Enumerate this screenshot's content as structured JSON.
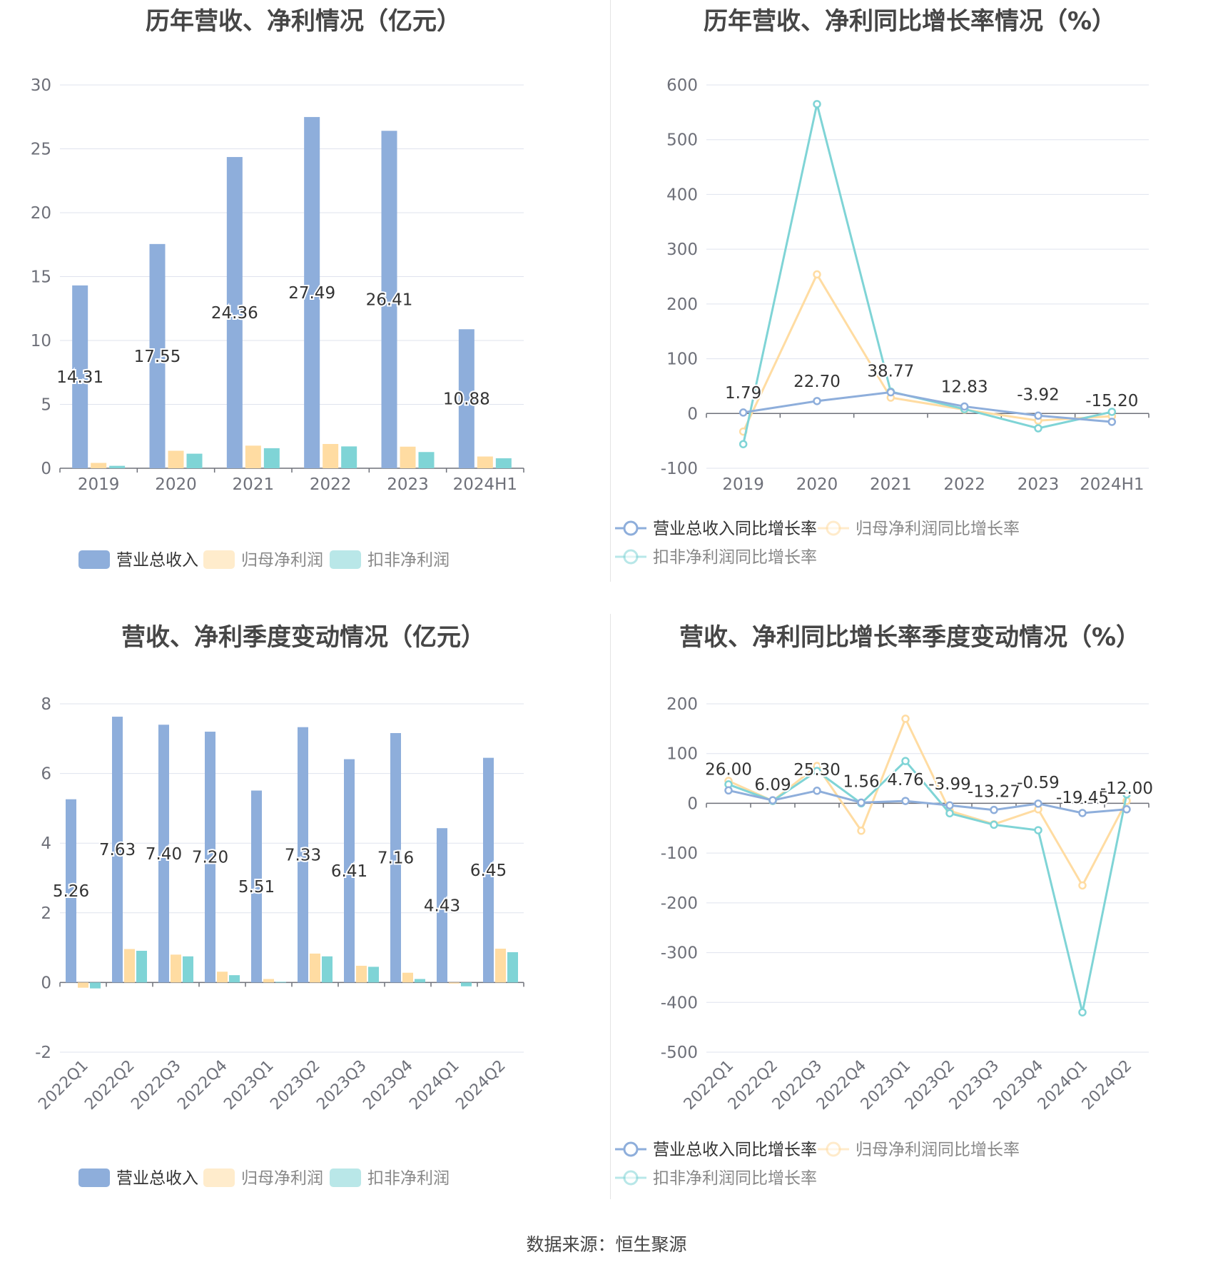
{
  "colors": {
    "revenue": "#8eaedb",
    "net_profit": "#ffdca2",
    "deducted_profit": "#7fd4d6",
    "axis": "#6e7079",
    "grid": "#dfe3ee",
    "title": "#464646"
  },
  "chart_data": [
    {
      "id": "annual-values",
      "type": "bar",
      "title": "历年营收、净利情况（亿元）",
      "categories": [
        "2019",
        "2020",
        "2021",
        "2022",
        "2023",
        "2024H1"
      ],
      "series": [
        {
          "name": "营业总收入",
          "values": [
            14.31,
            17.55,
            24.36,
            27.49,
            26.41,
            10.88
          ],
          "labels": [
            "14.31",
            "17.55",
            "24.36",
            "27.49",
            "26.41",
            "10.88"
          ]
        },
        {
          "name": "归母净利润",
          "values": [
            0.42,
            1.37,
            1.77,
            1.9,
            1.69,
            0.92
          ]
        },
        {
          "name": "扣非净利润",
          "values": [
            0.19,
            1.14,
            1.57,
            1.71,
            1.27,
            0.78
          ]
        }
      ],
      "yticks": [
        "30",
        "25",
        "20",
        "15",
        "10",
        "5",
        "0"
      ],
      "ylim": [
        0,
        30
      ]
    },
    {
      "id": "annual-growth",
      "type": "line",
      "title": "历年营收、净利同比增长率情况（%）",
      "categories": [
        "2019",
        "2020",
        "2021",
        "2022",
        "2023",
        "2024H1"
      ],
      "series": [
        {
          "name": "营业总收入同比增长率",
          "values": [
            1.79,
            22.7,
            38.77,
            12.83,
            -3.92,
            -15.2
          ],
          "labels": [
            "1.79",
            "22.70",
            "38.77",
            "12.83",
            "-3.92",
            "-15.20"
          ]
        },
        {
          "name": "归母净利润同比增长率",
          "values": [
            -33,
            254,
            29,
            7,
            -13,
            -5
          ]
        },
        {
          "name": "扣非净利润同比增长率",
          "values": [
            -56,
            565,
            40,
            8,
            -27,
            3
          ]
        }
      ],
      "yticks": [
        "600",
        "500",
        "400",
        "300",
        "200",
        "100",
        "0",
        "-100"
      ],
      "ylim": [
        -100,
        600
      ]
    },
    {
      "id": "quarterly-values",
      "type": "bar",
      "title": "营收、净利季度变动情况（亿元）",
      "categories": [
        "2022Q1",
        "2022Q2",
        "2022Q3",
        "2022Q4",
        "2023Q1",
        "2023Q2",
        "2023Q3",
        "2023Q4",
        "2024Q1",
        "2024Q2"
      ],
      "series": [
        {
          "name": "营业总收入",
          "values": [
            5.26,
            7.63,
            7.4,
            7.2,
            5.51,
            7.33,
            6.41,
            7.16,
            4.43,
            6.45
          ],
          "labels": [
            "5.26",
            "7.63",
            "7.40",
            "7.20",
            "5.51",
            "7.33",
            "6.41",
            "7.16",
            "4.43",
            "6.45"
          ]
        },
        {
          "name": "归母净利润",
          "values": [
            -0.15,
            0.96,
            0.8,
            0.31,
            0.1,
            0.83,
            0.48,
            0.28,
            -0.03,
            0.97
          ]
        },
        {
          "name": "扣非净利润",
          "values": [
            -0.17,
            0.91,
            0.75,
            0.21,
            0.02,
            0.75,
            0.45,
            0.1,
            -0.11,
            0.87
          ]
        }
      ],
      "yticks": [
        "8",
        "6",
        "4",
        "2",
        "0",
        "-2"
      ],
      "ylim": [
        -2,
        8
      ]
    },
    {
      "id": "quarterly-growth",
      "type": "line",
      "title": "营收、净利同比增长率季度变动情况（%）",
      "categories": [
        "2022Q1",
        "2022Q2",
        "2022Q3",
        "2022Q4",
        "2023Q1",
        "2023Q2",
        "2023Q3",
        "2023Q4",
        "2024Q1",
        "2024Q2"
      ],
      "series": [
        {
          "name": "营业总收入同比增长率",
          "values": [
            26.0,
            6.09,
            25.3,
            1.56,
            4.76,
            -3.99,
            -13.27,
            -0.59,
            -19.45,
            -12.0
          ],
          "labels": [
            "26.00",
            "6.09",
            "25.30",
            "1.56",
            "4.76",
            "-3.99",
            "-13.27",
            "-0.59",
            "-19.45",
            "-12.00"
          ]
        },
        {
          "name": "归母净利润同比增长率",
          "values": [
            45,
            5,
            75,
            -55,
            170,
            -15,
            -42,
            -12,
            -165,
            5
          ]
        },
        {
          "name": "扣非净利润同比增长率",
          "values": [
            38,
            5,
            65,
            0,
            85,
            -20,
            -43,
            -54,
            -420,
            18
          ]
        }
      ],
      "yticks": [
        "200",
        "100",
        "0",
        "-100",
        "-200",
        "-300",
        "-400",
        "-500"
      ],
      "ylim": [
        -500,
        200
      ]
    }
  ],
  "footer": {
    "source": "数据来源：恒生聚源"
  }
}
